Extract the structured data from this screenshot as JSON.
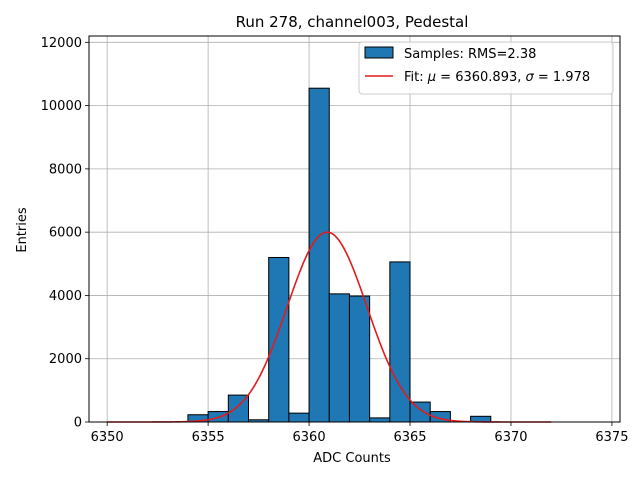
{
  "chart_data": {
    "type": "bar",
    "title": "Run 278, channel003, Pedestal",
    "xlabel": "ADC Counts",
    "ylabel": "Entries",
    "xlim": [
      6349.1,
      6375.4
    ],
    "ylim": [
      0,
      12200
    ],
    "xticks": [
      6350,
      6355,
      6360,
      6365,
      6370,
      6375
    ],
    "yticks": [
      0,
      2000,
      4000,
      6000,
      8000,
      10000,
      12000
    ],
    "grid": true,
    "legend_position": "top-right",
    "bin_width": 1,
    "series": [
      {
        "name": "Samples: RMS=2.38",
        "kind": "histogram",
        "color": "#1f77b4",
        "edgecolor": "#000000",
        "bins": [
          {
            "x0": 6354,
            "value": 230
          },
          {
            "x0": 6355,
            "value": 330
          },
          {
            "x0": 6356,
            "value": 850
          },
          {
            "x0": 6357,
            "value": 70
          },
          {
            "x0": 6358,
            "value": 5200
          },
          {
            "x0": 6359,
            "value": 280
          },
          {
            "x0": 6360,
            "value": 10550
          },
          {
            "x0": 6361,
            "value": 4050
          },
          {
            "x0": 6362,
            "value": 3980
          },
          {
            "x0": 6363,
            "value": 130
          },
          {
            "x0": 6364,
            "value": 5060
          },
          {
            "x0": 6365,
            "value": 630
          },
          {
            "x0": 6366,
            "value": 330
          },
          {
            "x0": 6368,
            "value": 180
          }
        ]
      },
      {
        "name_prefix": "Fit: ",
        "name_mu": "μ",
        "name_mid": " = 6360.893, ",
        "name_sigma": "σ",
        "name_suffix": " = 1.978",
        "kind": "gaussian",
        "color": "#e41a1c",
        "mu": 6360.893,
        "sigma": 1.978,
        "amplitude": 6000,
        "x_range": [
          6350,
          6372
        ]
      }
    ]
  }
}
